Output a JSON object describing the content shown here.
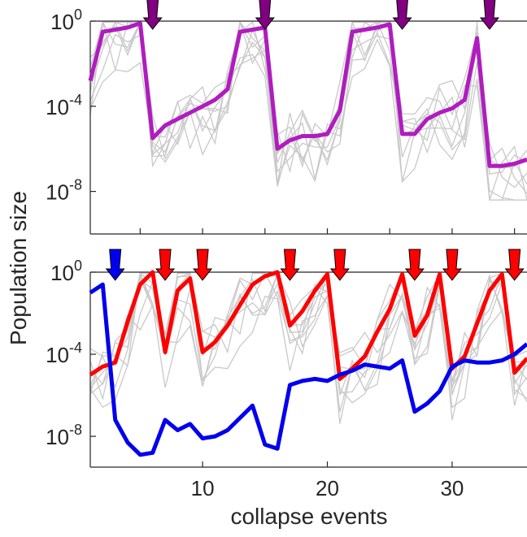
{
  "figure": {
    "ylabel": "Population size",
    "xlabel": "collapse events"
  },
  "colors": {
    "background_lines": "#c9c9c9",
    "top_series": "#b01cbf",
    "top_arrow": "#800080",
    "bottom_red": "#ff0000",
    "bottom_blue": "#0000ee",
    "axis": "#262626"
  },
  "chart_data": [
    {
      "type": "line",
      "panel": "top",
      "y_scale": "log",
      "xlim": [
        1,
        36
      ],
      "ylim_exp": [
        -10,
        0
      ],
      "yticks": [
        {
          "base": "10",
          "exp": "0",
          "value": 0
        },
        {
          "base": "10",
          "exp": "-4",
          "value": -4
        },
        {
          "base": "10",
          "exp": "-8",
          "value": -8
        }
      ],
      "xticks_exp_note": "tick marks at 5,10,...,35; no tick labels on this panel",
      "xtick_marks": [
        5,
        10,
        15,
        20,
        25,
        30,
        35
      ],
      "series": [
        {
          "role": "highlighted",
          "x": [
            1,
            2,
            3,
            4,
            5,
            6,
            7,
            8,
            9,
            10,
            11,
            12,
            13,
            14,
            15,
            16,
            17,
            18,
            19,
            20,
            21,
            22,
            23,
            24,
            25,
            26,
            27,
            28,
            29,
            30,
            31,
            32,
            33,
            34,
            35,
            36
          ],
          "log10_y": [
            -2.8,
            -0.5,
            -0.4,
            -0.3,
            -0.1,
            -5.5,
            -4.9,
            -4.6,
            -4.3,
            -4.0,
            -3.7,
            -3.2,
            -0.5,
            -0.4,
            -0.3,
            -6.0,
            -5.6,
            -5.4,
            -5.4,
            -5.3,
            -4.2,
            -0.5,
            -0.4,
            -0.3,
            -0.15,
            -5.3,
            -5.3,
            -4.6,
            -4.3,
            -4.1,
            -3.7,
            -0.8,
            -6.8,
            -6.8,
            -6.7,
            -6.5
          ]
        }
      ],
      "markers": [
        {
          "x": 6,
          "color": "top_arrow"
        },
        {
          "x": 15,
          "color": "top_arrow"
        },
        {
          "x": 26,
          "color": "top_arrow"
        },
        {
          "x": 33,
          "color": "top_arrow"
        }
      ]
    },
    {
      "type": "line",
      "panel": "bottom",
      "y_scale": "log",
      "xlim": [
        1,
        36
      ],
      "ylim_exp": [
        -9.5,
        0
      ],
      "yticks": [
        {
          "base": "10",
          "exp": "0",
          "value": 0
        },
        {
          "base": "10",
          "exp": "-4",
          "value": -4
        },
        {
          "base": "10",
          "exp": "-8",
          "value": -8
        }
      ],
      "xticks": [
        {
          "label": "10",
          "value": 10
        },
        {
          "label": "20",
          "value": 20
        },
        {
          "label": "30",
          "value": 30
        }
      ],
      "series": [
        {
          "role": "red",
          "x": [
            1,
            2,
            3,
            4,
            5,
            6,
            7,
            8,
            9,
            10,
            11,
            12,
            13,
            14,
            15,
            16,
            17,
            18,
            19,
            20,
            21,
            22,
            23,
            24,
            25,
            26,
            27,
            28,
            29,
            30,
            31,
            32,
            33,
            34,
            35,
            36
          ],
          "log10_y": [
            -5.0,
            -4.6,
            -4.4,
            -2.4,
            -0.6,
            0.0,
            -3.9,
            -0.9,
            -0.3,
            -3.9,
            -3.4,
            -2.6,
            -1.6,
            -0.6,
            -0.2,
            0.0,
            -2.6,
            -1.9,
            -0.9,
            -0.1,
            -5.2,
            -4.7,
            -4.1,
            -2.9,
            -1.8,
            -0.1,
            -3.1,
            -2.1,
            -0.1,
            -4.7,
            -4.1,
            -2.5,
            -0.9,
            -0.1,
            -4.9,
            -4.2
          ]
        },
        {
          "role": "blue",
          "x": [
            1,
            2,
            3,
            4,
            5,
            6,
            7,
            8,
            9,
            10,
            11,
            12,
            13,
            14,
            15,
            16,
            17,
            18,
            19,
            20,
            21,
            22,
            23,
            24,
            25,
            26,
            27,
            28,
            29,
            30,
            31,
            32,
            33,
            34,
            35,
            36
          ],
          "log10_y": [
            -1.0,
            -0.6,
            -7.2,
            -8.3,
            -8.9,
            -8.8,
            -7.2,
            -7.7,
            -7.4,
            -8.1,
            -8.0,
            -7.7,
            -7.1,
            -6.5,
            -8.4,
            -8.6,
            -5.5,
            -5.3,
            -5.2,
            -5.3,
            -5.0,
            -4.8,
            -4.5,
            -4.6,
            -4.7,
            -4.3,
            -6.8,
            -6.4,
            -5.8,
            -4.6,
            -4.3,
            -4.4,
            -4.4,
            -4.3,
            -4.0,
            -3.5
          ]
        }
      ],
      "markers": [
        {
          "x": 3,
          "color": "bottom_blue"
        },
        {
          "x": 7,
          "color": "bottom_red"
        },
        {
          "x": 10,
          "color": "bottom_red"
        },
        {
          "x": 17,
          "color": "bottom_red"
        },
        {
          "x": 21,
          "color": "bottom_red"
        },
        {
          "x": 27,
          "color": "bottom_red"
        },
        {
          "x": 30,
          "color": "bottom_red"
        },
        {
          "x": 35,
          "color": "bottom_red"
        }
      ]
    }
  ]
}
